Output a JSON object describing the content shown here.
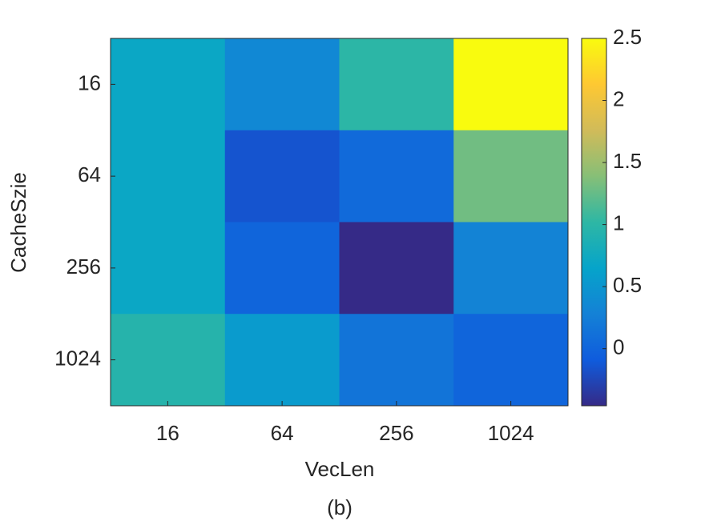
{
  "chart_data": {
    "type": "heatmap",
    "caption": "(b)",
    "xlabel": "VecLen",
    "ylabel": "CacheSzie",
    "x_categories": [
      "16",
      "64",
      "256",
      "1024"
    ],
    "y_categories": [
      "16",
      "64",
      "256",
      "1024"
    ],
    "values": [
      [
        0.7,
        0.35,
        1.0,
        2.5
      ],
      [
        0.7,
        -0.15,
        0.05,
        1.3
      ],
      [
        0.7,
        0.0,
        -0.46,
        0.3
      ],
      [
        0.95,
        0.55,
        0.15,
        0.0
      ]
    ],
    "colormap": "parula",
    "clim": [
      -0.46,
      2.5
    ],
    "cticks": [
      0,
      0.5,
      1,
      1.5,
      2,
      2.5
    ]
  }
}
